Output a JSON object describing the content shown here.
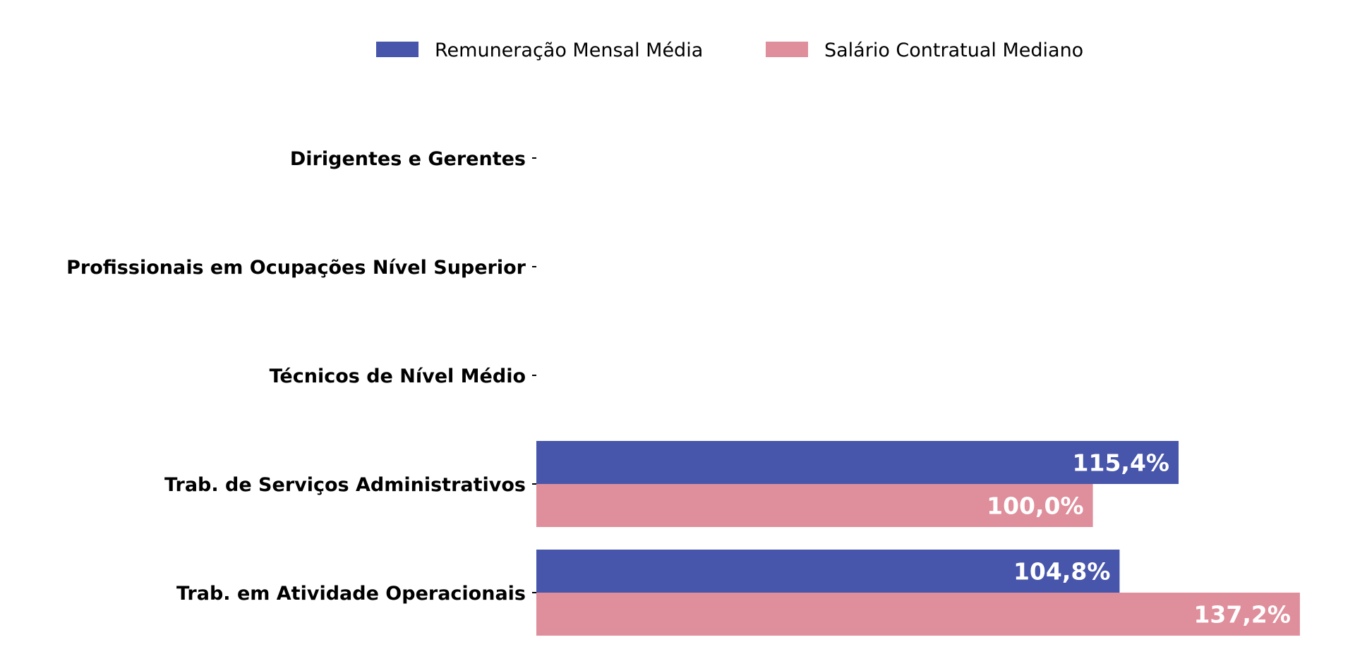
{
  "chart_data": {
    "type": "bar",
    "orientation": "horizontal",
    "categories": [
      "Dirigentes e Gerentes",
      "Profissionais em Ocupações Nível Superior",
      "Técnicos de Nível Médio",
      "Trab. de Serviços Administrativos",
      "Trab. em Atividade Operacionais"
    ],
    "series": [
      {
        "name": "Remuneração Mensal Média",
        "color": "#4755ab",
        "values": [
          null,
          null,
          null,
          115.4,
          104.8
        ],
        "labels": [
          "",
          "",
          "",
          "115,4%",
          "104,8%"
        ]
      },
      {
        "name": "Salário Contratual Mediano",
        "color": "#df8e9b",
        "values": [
          null,
          null,
          null,
          100.0,
          137.2
        ],
        "labels": [
          "",
          "",
          "",
          "100,0%",
          "137,2%"
        ]
      }
    ],
    "title": "",
    "xlabel": "",
    "ylabel": "",
    "xlim": [
      0,
      140
    ],
    "grid": false,
    "legend_position": "top-center"
  }
}
